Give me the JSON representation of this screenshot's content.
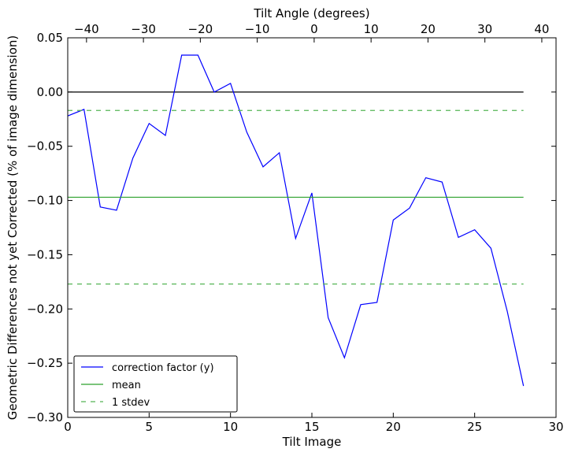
{
  "chart_data": {
    "type": "line",
    "xlabel": "Tilt Image",
    "ylabel": "Geometric Differences not yet Corrected (% of image dimension)",
    "top_xlabel": "Tilt Angle (degrees)",
    "xlim": [
      0,
      30
    ],
    "ylim": [
      -0.3,
      0.05
    ],
    "top_xlim": [
      -43.3,
      42.5
    ],
    "x_ticks": [
      0,
      5,
      10,
      15,
      20,
      25,
      30
    ],
    "x_tick_labels": [
      "0",
      "5",
      "10",
      "15",
      "20",
      "25",
      "30"
    ],
    "y_ticks": [
      0.05,
      0.0,
      -0.05,
      -0.1,
      -0.15,
      -0.2,
      -0.25,
      -0.3
    ],
    "y_tick_labels": [
      "0.05",
      "0.00",
      "−0.05",
      "−0.10",
      "−0.15",
      "−0.20",
      "−0.25",
      "−0.30"
    ],
    "top_ticks": [
      -40,
      -30,
      -20,
      -10,
      0,
      10,
      20,
      30,
      40
    ],
    "top_tick_labels": [
      "−40",
      "−30",
      "−20",
      "−10",
      "0",
      "10",
      "20",
      "30",
      "40"
    ],
    "grid": false,
    "legend_position": "bottom-left",
    "series": [
      {
        "name": "correction factor (y)",
        "color": "#0000ff",
        "style": "solid",
        "x": [
          0,
          1,
          2,
          3,
          4,
          5,
          6,
          7,
          8,
          9,
          10,
          11,
          12,
          13,
          14,
          15,
          16,
          17,
          18,
          19,
          20,
          21,
          22,
          23,
          24,
          25,
          26,
          27,
          28
        ],
        "values": [
          -0.022,
          -0.016,
          -0.106,
          -0.109,
          -0.061,
          -0.029,
          -0.04,
          0.034,
          0.034,
          0.0,
          0.008,
          -0.037,
          -0.069,
          -0.056,
          -0.135,
          -0.093,
          -0.208,
          -0.245,
          -0.196,
          -0.194,
          -0.118,
          -0.107,
          -0.079,
          -0.083,
          -0.134,
          -0.127,
          -0.144,
          -0.202,
          -0.271
        ]
      },
      {
        "name": "mean",
        "color": "#2ca02c",
        "style": "solid",
        "x": [
          0,
          28
        ],
        "values": [
          -0.097,
          -0.097
        ]
      },
      {
        "name": "1 stdev",
        "color": "#55b555",
        "style": "dashed",
        "x": [
          0,
          28
        ],
        "values": [
          -0.017,
          -0.017
        ],
        "upper_and_lower": [
          -0.017,
          -0.177
        ]
      }
    ],
    "reference_line": {
      "y": 0.0,
      "x": [
        0,
        28
      ],
      "color": "#000000"
    }
  }
}
